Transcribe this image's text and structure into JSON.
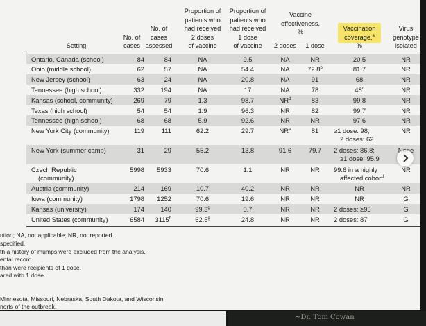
{
  "table": {
    "header": {
      "setting": "Setting",
      "cases": [
        "No. of",
        "cases"
      ],
      "assessed": [
        "No. of",
        "cases",
        "assessed"
      ],
      "prop2": [
        "Proportion of",
        "patients who",
        "had received",
        "2 doses",
        "of vaccine"
      ],
      "prop1": [
        "Proportion of",
        "patients who",
        "had received",
        "1 dose",
        "of vaccine"
      ],
      "effectiveness": [
        "Vaccine",
        "effectiveness,",
        "%"
      ],
      "ve2": "2 doses",
      "ve1": "1 dose",
      "coverage": [
        "Vaccination",
        {
          "text": "coverage,",
          "sup": "a"
        },
        "%"
      ],
      "genotype": [
        "Virus",
        "genotype",
        "isolated"
      ]
    },
    "rows": [
      [
        "Ontario, Canada (school)",
        84,
        84,
        "NA",
        9.5,
        "NA",
        "NR",
        20.5,
        "NR"
      ],
      [
        "Ohio (middle school)",
        62,
        57,
        "NA",
        54.4,
        "NA",
        {
          "text": "72.8",
          "sup": "b"
        },
        81.7,
        "NR"
      ],
      [
        "New Jersey (school)",
        63,
        24,
        "NA",
        20.8,
        "NA",
        91,
        68,
        "NR"
      ],
      [
        "Tennessee (high school)",
        332,
        194,
        "NA",
        17,
        "NA",
        78,
        {
          "text": "48",
          "sup": "c"
        },
        "NR"
      ],
      [
        "Kansas (school, community)",
        269,
        79,
        1.3,
        98.7,
        {
          "text": "NR",
          "sup": "d"
        },
        83,
        99.8,
        "NR"
      ],
      [
        "Texas (high school)",
        54,
        54,
        1.9,
        96.3,
        "NR",
        82,
        99.7,
        "NR"
      ],
      [
        "Tennessee (high school)",
        68,
        68,
        5.9,
        92.6,
        "NR",
        "NR",
        97.6,
        "NR"
      ],
      [
        "New York City (community)",
        119,
        111,
        62.2,
        29.7,
        {
          "text": "NR",
          "sup": "e"
        },
        81,
        [
          "≥1 dose: 98;",
          "2 doses: 62"
        ],
        "NR"
      ],
      [
        "New York (summer camp)",
        31,
        29,
        55.2,
        13.8,
        91.6,
        79.7,
        [
          "2 doses: 86.8;",
          "≥1 dose: 95.9"
        ],
        "None"
      ],
      [
        [
          "Czech Republic",
          "(community)"
        ],
        5998,
        5933,
        70.6,
        1.1,
        "NR",
        "NR",
        [
          "99.6 in a highly",
          {
            "text": "affected cohort",
            "sup": "f"
          }
        ],
        "NR"
      ],
      [
        "Austria (community)",
        214,
        169,
        10.7,
        40.2,
        "NR",
        "NR",
        "NR",
        "NR"
      ],
      [
        "Iowa (community)",
        1798,
        1252,
        70.6,
        19.6,
        "NR",
        "NR",
        "NR",
        "G"
      ],
      [
        "Kansas (university)",
        174,
        140,
        {
          "text": "99.3",
          "sup": "g"
        },
        0.7,
        "NR",
        "NR",
        "2 doses: ≥95",
        "G"
      ],
      [
        "United States (community)",
        6584,
        {
          "text": "3115",
          "sup": "h"
        },
        {
          "text": "62.5",
          "sup": "g"
        },
        24.8,
        "NR",
        "NR",
        {
          "text": "2 doses: 87",
          "sup": "i"
        },
        "G"
      ]
    ],
    "footnotes": [
      "ntion; NA, not applicable; NR, not reported.",
      "specified.",
      "th a history of mumps were excluded from the analysis.",
      "ental record.",
      "than were recipients of 1 dose.",
      "ared with 1 dose.",
      "Minnesota, Missouri, Nebraska, South Dakota, and Wisconsin",
      "norts of the outbreak."
    ]
  },
  "signature": "~Dr. Tom Cowan"
}
